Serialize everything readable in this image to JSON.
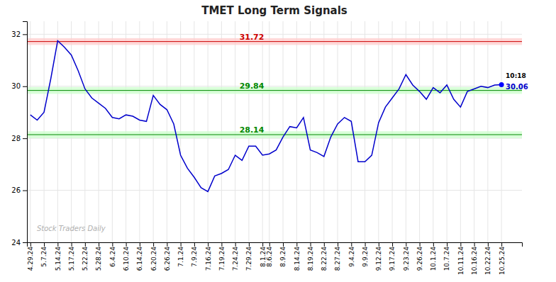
{
  "chart_data": {
    "type": "line",
    "title": "TMET Long Term Signals",
    "categories": [
      "4.29.24",
      null,
      "5.7.24",
      null,
      "5.14.24",
      null,
      "5.17.24",
      null,
      "5.22.24",
      null,
      "5.28.24",
      null,
      "6.4.24",
      null,
      "6.10.24",
      null,
      "6.14.24",
      null,
      "6.20.24",
      null,
      "6.26.24",
      null,
      "7.1.24",
      null,
      "7.9.24",
      null,
      "7.16.24",
      null,
      "7.19.24",
      null,
      "7.24.24",
      null,
      "7.29.24",
      null,
      "8.1.24",
      "8.6.24",
      null,
      "8.9.24",
      null,
      "8.14.24",
      null,
      "8.19.24",
      null,
      "8.22.24",
      null,
      "8.27.24",
      null,
      "9.4.24",
      null,
      "9.9.24",
      null,
      "9.12.24",
      null,
      "9.17.24",
      null,
      "9.23.24",
      null,
      "9.26.24",
      null,
      "10.1.24",
      null,
      "10.7.24",
      null,
      "10.11.24",
      null,
      "10.16.24",
      null,
      "10.22.24",
      null,
      "10.25.24"
    ],
    "values": [
      28.9,
      28.7,
      29.0,
      30.3,
      31.75,
      31.5,
      31.2,
      30.6,
      29.9,
      29.55,
      29.35,
      29.15,
      28.8,
      28.75,
      28.9,
      28.85,
      28.7,
      28.65,
      29.65,
      29.3,
      29.1,
      28.55,
      27.35,
      26.85,
      26.5,
      26.1,
      25.95,
      26.55,
      26.65,
      26.8,
      27.35,
      27.15,
      27.7,
      27.7,
      27.35,
      27.4,
      27.55,
      28.05,
      28.45,
      28.4,
      28.8,
      27.55,
      27.45,
      27.3,
      28.05,
      28.55,
      28.8,
      28.65,
      27.1,
      27.1,
      27.35,
      28.6,
      29.2,
      29.55,
      29.9,
      30.45,
      30.05,
      29.8,
      29.5,
      29.95,
      29.75,
      30.05,
      29.5,
      29.2,
      29.8,
      29.9,
      30.0,
      29.95,
      30.05,
      30.06
    ],
    "color": "#0000cc",
    "ylim": [
      24,
      32.5
    ],
    "yticks": [
      24,
      26,
      28,
      30,
      32
    ],
    "grid": true,
    "reference_lines": [
      {
        "value": 31.72,
        "color": "#cc0000",
        "band": [
          31.59,
          31.85
        ],
        "band_color": "#ffcccc"
      },
      {
        "value": 29.84,
        "color": "#008800",
        "band": [
          29.71,
          29.97
        ],
        "band_color": "#ccffcc"
      },
      {
        "value": 28.14,
        "color": "#008800",
        "band": [
          28.01,
          28.27
        ],
        "band_color": "#ccffcc"
      }
    ],
    "last_point": {
      "value": 30.06,
      "label": "10:18",
      "color": "#0000ff",
      "label_color": "#000000",
      "value_color": "#0000cc"
    },
    "watermark": "Stock Traders Daily"
  }
}
